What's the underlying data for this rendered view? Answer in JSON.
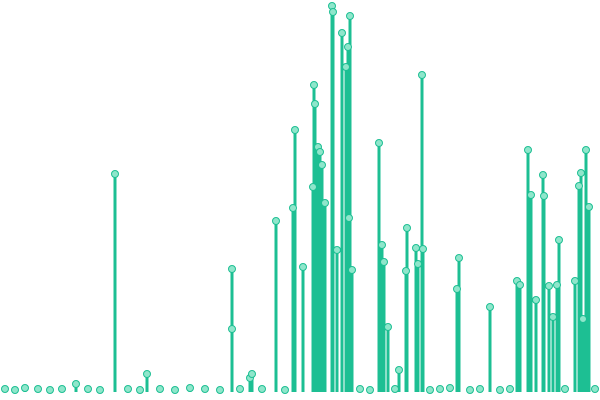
{
  "chart_data": {
    "type": "lollipop",
    "color": "#1dbf93",
    "marker_color": "#8fe6cb",
    "x": [
      5,
      15,
      25,
      38,
      50,
      62,
      76,
      88,
      100,
      115,
      128,
      140,
      147,
      160,
      175,
      190,
      205,
      220,
      232,
      232,
      240,
      250,
      252,
      262,
      276,
      285,
      293,
      295,
      303,
      313,
      314,
      315,
      318,
      320,
      322,
      325,
      332,
      333,
      337,
      342,
      346,
      348,
      349,
      350,
      352,
      360,
      370,
      379,
      382,
      384,
      388,
      395,
      399,
      406,
      407,
      416,
      418,
      422,
      423,
      430,
      440,
      450,
      457,
      459,
      470,
      480,
      490,
      500,
      510,
      517,
      520,
      528,
      531,
      536,
      543,
      544,
      549,
      553,
      557,
      559,
      565,
      575,
      579,
      581,
      583,
      586,
      589,
      595
    ],
    "values": [
      3,
      2,
      4,
      3,
      2,
      3,
      8,
      3,
      2,
      218,
      3,
      2,
      18,
      3,
      2,
      4,
      3,
      2,
      63,
      123,
      3,
      14,
      18,
      3,
      171,
      2,
      184,
      262,
      125,
      205,
      307,
      288,
      245,
      240,
      227,
      189,
      386,
      380,
      142,
      359,
      325,
      345,
      174,
      376,
      122,
      3,
      2,
      249,
      147,
      130,
      65,
      3,
      22,
      121,
      164,
      144,
      128,
      317,
      143,
      2,
      3,
      4,
      103,
      134,
      2,
      3,
      85,
      2,
      3,
      111,
      107,
      242,
      197,
      92,
      217,
      196,
      106,
      75,
      107,
      152,
      3,
      111,
      206,
      219,
      73,
      242,
      185,
      3
    ]
  }
}
